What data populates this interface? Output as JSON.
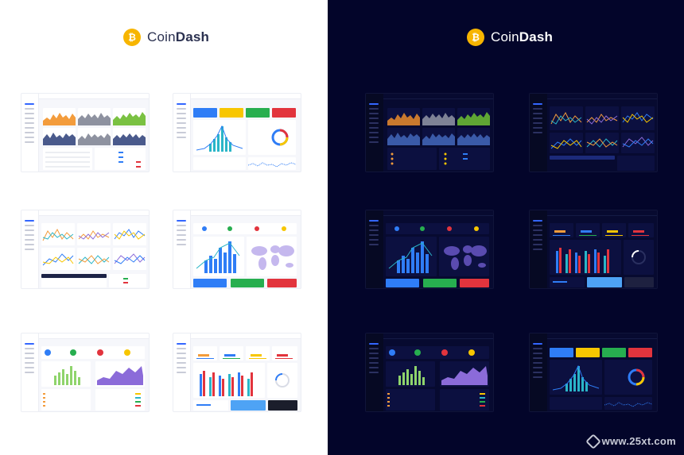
{
  "brand": {
    "name_light_part": "Coin",
    "name_bold_part": "Dash",
    "coin_symbol": "₿",
    "coin_color": "#f7b500"
  },
  "themes": {
    "light": {
      "background": "#ffffff",
      "card": "#ffffff"
    },
    "dark": {
      "background": "#03052a",
      "card": "#0c1040"
    }
  },
  "accent_colors": {
    "blue": "#2f7df6",
    "yellow": "#f7c600",
    "green": "#27ae4f",
    "red": "#e2343d",
    "orange": "#f39c3c",
    "purple": "#8b6bd9",
    "teal": "#2ab5c8"
  },
  "thumbnails": [
    {
      "name": "dashboard-price-charts"
    },
    {
      "name": "dashboard-stat-tiles"
    },
    {
      "name": "dashboard-line-charts"
    },
    {
      "name": "dashboard-world-map"
    },
    {
      "name": "dashboard-bar-area"
    },
    {
      "name": "dashboard-columns-weather"
    }
  ],
  "watermark": "www.25xt.com"
}
